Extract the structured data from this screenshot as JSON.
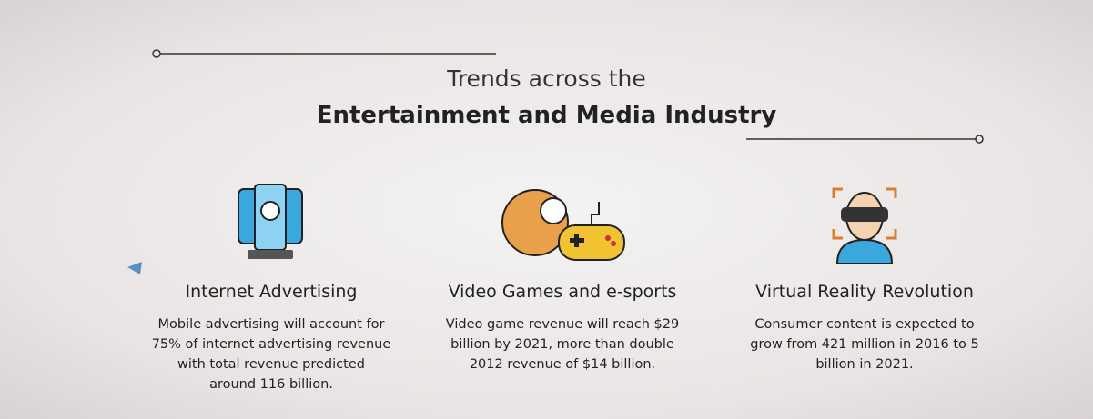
{
  "header": {
    "title_line1": "Trends across the",
    "title_line2": "Entertainment and Media Industry"
  },
  "items": [
    {
      "heading": "Internet Advertising",
      "lines": [
        "Mobile advertising will account for",
        "75% of internet advertising revenue",
        "with total revenue predicted",
        "around 116 billion."
      ]
    },
    {
      "heading": "Video Games and e-sports",
      "lines": [
        "Video game revenue will reach $29",
        "billion by 2021, more than double",
        "2012 revenue of $14 billion."
      ]
    },
    {
      "heading": "Virtual Reality Revolution",
      "lines": [
        "Consumer content is expected to",
        "grow from 421 million in 2016 to 5",
        "billion in 2021."
      ]
    }
  ]
}
